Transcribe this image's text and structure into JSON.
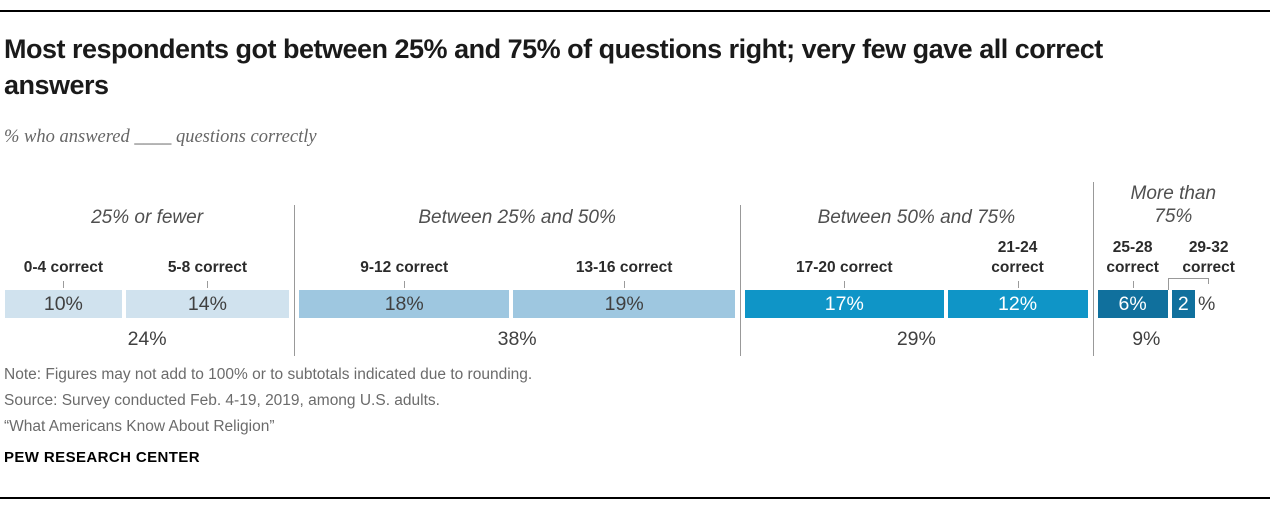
{
  "chart_data": {
    "type": "bar",
    "subtype": "horizontal-stacked-distribution",
    "title": "Most respondents got between 25% and 75% of questions right; very few gave all correct answers",
    "subtitle": "% who answered ____ questions correctly",
    "unit": "% of U.S. adults",
    "total_shown_percent": 98,
    "grid": "off",
    "legend": "none",
    "groups": [
      {
        "label": "25% or fewer",
        "subtotal": "24%",
        "color": "#d0e2ee",
        "value_text_color": "#404040",
        "segments": [
          {
            "label_lines": [
              "0-4 correct"
            ],
            "value": 10,
            "value_label": "10%"
          },
          {
            "label_lines": [
              "5-8 correct"
            ],
            "value": 14,
            "value_label": "14%"
          }
        ]
      },
      {
        "label": "Between 25% and 50%",
        "subtotal": "38%",
        "color": "#9ec7e0",
        "value_text_color": "#404040",
        "segments": [
          {
            "label_lines": [
              "9-12 correct"
            ],
            "value": 18,
            "value_label": "18%"
          },
          {
            "label_lines": [
              "13-16 correct"
            ],
            "value": 19,
            "value_label": "19%"
          }
        ]
      },
      {
        "label": "Between 50% and 75%",
        "subtotal": "29%",
        "color": "#0f95c7",
        "value_text_color": "#ffffff",
        "segments": [
          {
            "label_lines": [
              "17-20 correct"
            ],
            "value": 17,
            "value_label": "17%"
          },
          {
            "label_lines": [
              "21-24",
              "correct"
            ],
            "value": 12,
            "value_label": "12%"
          }
        ]
      },
      {
        "label": "More than 75%",
        "subtotal": "9%",
        "color": "#10709d",
        "value_text_color": "#ffffff",
        "segments": [
          {
            "label_lines": [
              "25-28",
              "correct"
            ],
            "value": 6,
            "value_label": "6%"
          },
          {
            "label_lines": [
              "29-32",
              "correct"
            ],
            "value": 2,
            "value_label": "2",
            "outside_label": "%",
            "label_offset": true
          }
        ]
      }
    ]
  },
  "footer": {
    "note": "Note: Figures may not add to 100% or to subtotals indicated due to rounding.",
    "source": "Source: Survey conducted Feb. 4-19, 2019, among U.S. adults.",
    "report_title": "“What Americans Know About Religion”",
    "brand": "PEW RESEARCH CENTER"
  },
  "colors": {
    "divider_gray": "#999999",
    "title_text": "#1a1a1a",
    "secondary_text": "#666666"
  }
}
